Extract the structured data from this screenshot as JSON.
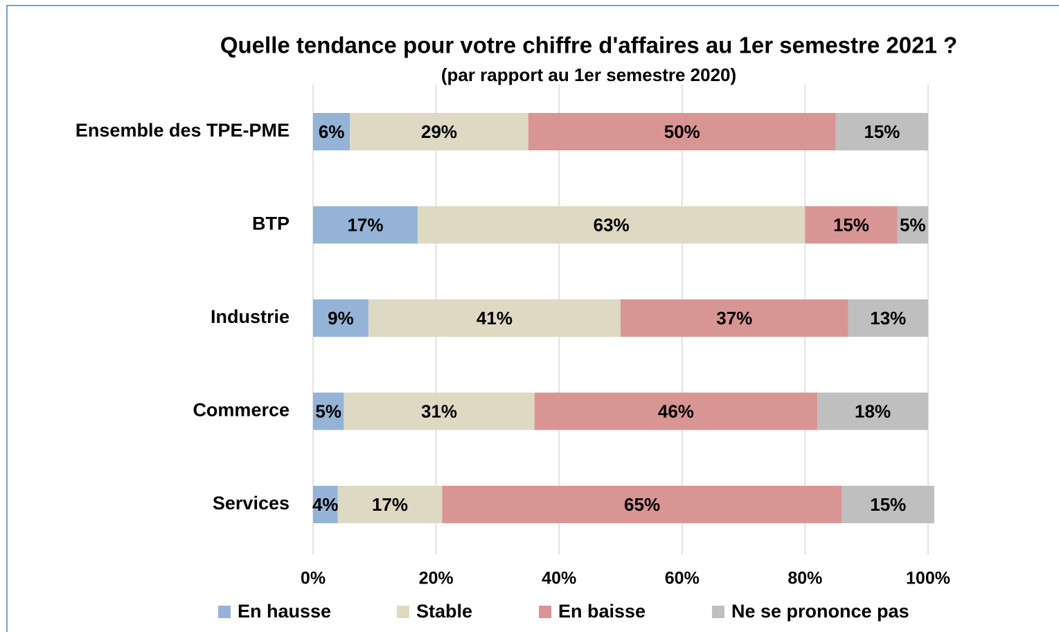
{
  "chart_data": {
    "type": "stacked-barh",
    "title": "Quelle tendance pour votre chiffre d'affaires au 1er semestre 2021 ?",
    "subtitle": "(par rapport au 1er semestre 2020)",
    "categories": [
      "Ensemble des TPE-PME",
      "BTP",
      "Industrie",
      "Commerce",
      "Services"
    ],
    "series": [
      {
        "name": "En hausse",
        "color": "#95b3d7",
        "values": [
          6,
          17,
          9,
          5,
          4
        ],
        "value_labels": [
          "6%",
          "17%",
          "9%",
          "5%",
          "4%"
        ]
      },
      {
        "name": "Stable",
        "color": "#ddd9c3",
        "values": [
          29,
          63,
          41,
          31,
          17
        ],
        "value_labels": [
          "29%",
          "63%",
          "41%",
          "31%",
          "17%"
        ]
      },
      {
        "name": "En baisse",
        "color": "#d99594",
        "values": [
          50,
          15,
          37,
          46,
          65
        ],
        "value_labels": [
          "50%",
          "15%",
          "37%",
          "46%",
          "65%"
        ]
      },
      {
        "name": "Ne se prononce pas",
        "color": "#bfbfbf",
        "values": [
          15,
          5,
          13,
          18,
          15
        ],
        "value_labels": [
          "15%",
          "5%",
          "13%",
          "18%",
          "15%"
        ]
      }
    ],
    "xlim": [
      0,
      100
    ],
    "xticks": [
      {
        "value": 0,
        "label": "0%"
      },
      {
        "value": 20,
        "label": "20%"
      },
      {
        "value": 40,
        "label": "40%"
      },
      {
        "value": 60,
        "label": "60%"
      },
      {
        "value": 80,
        "label": "80%"
      },
      {
        "value": 100,
        "label": "100%"
      }
    ],
    "grid": true,
    "legend": "bottom"
  }
}
